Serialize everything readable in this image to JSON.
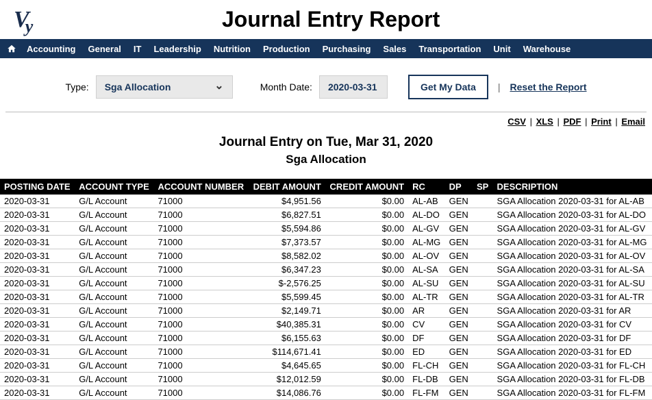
{
  "header": {
    "logo_v": "V",
    "logo_y": "y",
    "title": "Journal Entry Report"
  },
  "nav": {
    "items": [
      "Accounting",
      "General",
      "IT",
      "Leadership",
      "Nutrition",
      "Production",
      "Purchasing",
      "Sales",
      "Transportation",
      "Unit",
      "Warehouse"
    ]
  },
  "controls": {
    "type_label": "Type:",
    "type_value": "Sga Allocation",
    "month_label": "Month Date:",
    "month_value": "2020-03-31",
    "get_data_label": "Get My Data",
    "reset_label": "Reset the Report"
  },
  "exports": {
    "csv": "CSV",
    "xls": "XLS",
    "pdf": "PDF",
    "print": "Print",
    "email": "Email"
  },
  "subtitle": {
    "line1": "Journal Entry on Tue, Mar 31, 2020",
    "line2": "Sga Allocation"
  },
  "table": {
    "columns": [
      "POSTING DATE",
      "ACCOUNT TYPE",
      "ACCOUNT NUMBER",
      "DEBIT AMOUNT",
      "CREDIT AMOUNT",
      "RC",
      "DP",
      "SP",
      "DESCRIPTION"
    ],
    "rows": [
      [
        "2020-03-31",
        "G/L Account",
        "71000",
        "$4,951.56",
        "$0.00",
        "AL-AB",
        "GEN",
        "",
        "SGA Allocation 2020-03-31 for AL-AB"
      ],
      [
        "2020-03-31",
        "G/L Account",
        "71000",
        "$6,827.51",
        "$0.00",
        "AL-DO",
        "GEN",
        "",
        "SGA Allocation 2020-03-31 for AL-DO"
      ],
      [
        "2020-03-31",
        "G/L Account",
        "71000",
        "$5,594.86",
        "$0.00",
        "AL-GV",
        "GEN",
        "",
        "SGA Allocation 2020-03-31 for AL-GV"
      ],
      [
        "2020-03-31",
        "G/L Account",
        "71000",
        "$7,373.57",
        "$0.00",
        "AL-MG",
        "GEN",
        "",
        "SGA Allocation 2020-03-31 for AL-MG"
      ],
      [
        "2020-03-31",
        "G/L Account",
        "71000",
        "$8,582.02",
        "$0.00",
        "AL-OV",
        "GEN",
        "",
        "SGA Allocation 2020-03-31 for AL-OV"
      ],
      [
        "2020-03-31",
        "G/L Account",
        "71000",
        "$6,347.23",
        "$0.00",
        "AL-SA",
        "GEN",
        "",
        "SGA Allocation 2020-03-31 for AL-SA"
      ],
      [
        "2020-03-31",
        "G/L Account",
        "71000",
        "$-2,576.25",
        "$0.00",
        "AL-SU",
        "GEN",
        "",
        "SGA Allocation 2020-03-31 for AL-SU"
      ],
      [
        "2020-03-31",
        "G/L Account",
        "71000",
        "$5,599.45",
        "$0.00",
        "AL-TR",
        "GEN",
        "",
        "SGA Allocation 2020-03-31 for AL-TR"
      ],
      [
        "2020-03-31",
        "G/L Account",
        "71000",
        "$2,149.71",
        "$0.00",
        "AR",
        "GEN",
        "",
        "SGA Allocation 2020-03-31 for AR"
      ],
      [
        "2020-03-31",
        "G/L Account",
        "71000",
        "$40,385.31",
        "$0.00",
        "CV",
        "GEN",
        "",
        "SGA Allocation 2020-03-31 for CV"
      ],
      [
        "2020-03-31",
        "G/L Account",
        "71000",
        "$6,155.63",
        "$0.00",
        "DF",
        "GEN",
        "",
        "SGA Allocation 2020-03-31 for DF"
      ],
      [
        "2020-03-31",
        "G/L Account",
        "71000",
        "$114,671.41",
        "$0.00",
        "ED",
        "GEN",
        "",
        "SGA Allocation 2020-03-31 for ED"
      ],
      [
        "2020-03-31",
        "G/L Account",
        "71000",
        "$4,645.65",
        "$0.00",
        "FL-CH",
        "GEN",
        "",
        "SGA Allocation 2020-03-31 for FL-CH"
      ],
      [
        "2020-03-31",
        "G/L Account",
        "71000",
        "$12,012.59",
        "$0.00",
        "FL-DB",
        "GEN",
        "",
        "SGA Allocation 2020-03-31 for FL-DB"
      ],
      [
        "2020-03-31",
        "G/L Account",
        "71000",
        "$14,086.76",
        "$0.00",
        "FL-FM",
        "GEN",
        "",
        "SGA Allocation 2020-03-31 for FL-FM"
      ]
    ]
  }
}
